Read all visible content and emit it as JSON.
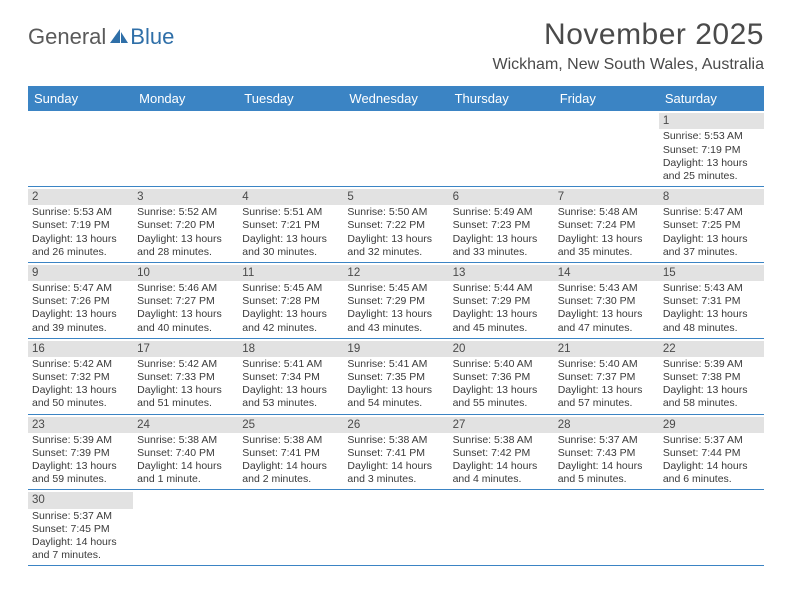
{
  "brand": {
    "part1": "General",
    "part2": "Blue"
  },
  "title": "November 2025",
  "location": "Wickham, New South Wales, Australia",
  "colors": {
    "header_bg": "#3b84c4",
    "header_text": "#ffffff",
    "band_bg": "#e2e2e2",
    "rule": "#3b84c4",
    "text": "#3a3a3a",
    "title_text": "#4a4a4a"
  },
  "day_names": [
    "Sunday",
    "Monday",
    "Tuesday",
    "Wednesday",
    "Thursday",
    "Friday",
    "Saturday"
  ],
  "weeks": [
    [
      {
        "n": "",
        "sr": "",
        "ss": "",
        "dl": ""
      },
      {
        "n": "",
        "sr": "",
        "ss": "",
        "dl": ""
      },
      {
        "n": "",
        "sr": "",
        "ss": "",
        "dl": ""
      },
      {
        "n": "",
        "sr": "",
        "ss": "",
        "dl": ""
      },
      {
        "n": "",
        "sr": "",
        "ss": "",
        "dl": ""
      },
      {
        "n": "",
        "sr": "",
        "ss": "",
        "dl": ""
      },
      {
        "n": "1",
        "sr": "Sunrise: 5:53 AM",
        "ss": "Sunset: 7:19 PM",
        "dl": "Daylight: 13 hours and 25 minutes."
      }
    ],
    [
      {
        "n": "2",
        "sr": "Sunrise: 5:53 AM",
        "ss": "Sunset: 7:19 PM",
        "dl": "Daylight: 13 hours and 26 minutes."
      },
      {
        "n": "3",
        "sr": "Sunrise: 5:52 AM",
        "ss": "Sunset: 7:20 PM",
        "dl": "Daylight: 13 hours and 28 minutes."
      },
      {
        "n": "4",
        "sr": "Sunrise: 5:51 AM",
        "ss": "Sunset: 7:21 PM",
        "dl": "Daylight: 13 hours and 30 minutes."
      },
      {
        "n": "5",
        "sr": "Sunrise: 5:50 AM",
        "ss": "Sunset: 7:22 PM",
        "dl": "Daylight: 13 hours and 32 minutes."
      },
      {
        "n": "6",
        "sr": "Sunrise: 5:49 AM",
        "ss": "Sunset: 7:23 PM",
        "dl": "Daylight: 13 hours and 33 minutes."
      },
      {
        "n": "7",
        "sr": "Sunrise: 5:48 AM",
        "ss": "Sunset: 7:24 PM",
        "dl": "Daylight: 13 hours and 35 minutes."
      },
      {
        "n": "8",
        "sr": "Sunrise: 5:47 AM",
        "ss": "Sunset: 7:25 PM",
        "dl": "Daylight: 13 hours and 37 minutes."
      }
    ],
    [
      {
        "n": "9",
        "sr": "Sunrise: 5:47 AM",
        "ss": "Sunset: 7:26 PM",
        "dl": "Daylight: 13 hours and 39 minutes."
      },
      {
        "n": "10",
        "sr": "Sunrise: 5:46 AM",
        "ss": "Sunset: 7:27 PM",
        "dl": "Daylight: 13 hours and 40 minutes."
      },
      {
        "n": "11",
        "sr": "Sunrise: 5:45 AM",
        "ss": "Sunset: 7:28 PM",
        "dl": "Daylight: 13 hours and 42 minutes."
      },
      {
        "n": "12",
        "sr": "Sunrise: 5:45 AM",
        "ss": "Sunset: 7:29 PM",
        "dl": "Daylight: 13 hours and 43 minutes."
      },
      {
        "n": "13",
        "sr": "Sunrise: 5:44 AM",
        "ss": "Sunset: 7:29 PM",
        "dl": "Daylight: 13 hours and 45 minutes."
      },
      {
        "n": "14",
        "sr": "Sunrise: 5:43 AM",
        "ss": "Sunset: 7:30 PM",
        "dl": "Daylight: 13 hours and 47 minutes."
      },
      {
        "n": "15",
        "sr": "Sunrise: 5:43 AM",
        "ss": "Sunset: 7:31 PM",
        "dl": "Daylight: 13 hours and 48 minutes."
      }
    ],
    [
      {
        "n": "16",
        "sr": "Sunrise: 5:42 AM",
        "ss": "Sunset: 7:32 PM",
        "dl": "Daylight: 13 hours and 50 minutes."
      },
      {
        "n": "17",
        "sr": "Sunrise: 5:42 AM",
        "ss": "Sunset: 7:33 PM",
        "dl": "Daylight: 13 hours and 51 minutes."
      },
      {
        "n": "18",
        "sr": "Sunrise: 5:41 AM",
        "ss": "Sunset: 7:34 PM",
        "dl": "Daylight: 13 hours and 53 minutes."
      },
      {
        "n": "19",
        "sr": "Sunrise: 5:41 AM",
        "ss": "Sunset: 7:35 PM",
        "dl": "Daylight: 13 hours and 54 minutes."
      },
      {
        "n": "20",
        "sr": "Sunrise: 5:40 AM",
        "ss": "Sunset: 7:36 PM",
        "dl": "Daylight: 13 hours and 55 minutes."
      },
      {
        "n": "21",
        "sr": "Sunrise: 5:40 AM",
        "ss": "Sunset: 7:37 PM",
        "dl": "Daylight: 13 hours and 57 minutes."
      },
      {
        "n": "22",
        "sr": "Sunrise: 5:39 AM",
        "ss": "Sunset: 7:38 PM",
        "dl": "Daylight: 13 hours and 58 minutes."
      }
    ],
    [
      {
        "n": "23",
        "sr": "Sunrise: 5:39 AM",
        "ss": "Sunset: 7:39 PM",
        "dl": "Daylight: 13 hours and 59 minutes."
      },
      {
        "n": "24",
        "sr": "Sunrise: 5:38 AM",
        "ss": "Sunset: 7:40 PM",
        "dl": "Daylight: 14 hours and 1 minute."
      },
      {
        "n": "25",
        "sr": "Sunrise: 5:38 AM",
        "ss": "Sunset: 7:41 PM",
        "dl": "Daylight: 14 hours and 2 minutes."
      },
      {
        "n": "26",
        "sr": "Sunrise: 5:38 AM",
        "ss": "Sunset: 7:41 PM",
        "dl": "Daylight: 14 hours and 3 minutes."
      },
      {
        "n": "27",
        "sr": "Sunrise: 5:38 AM",
        "ss": "Sunset: 7:42 PM",
        "dl": "Daylight: 14 hours and 4 minutes."
      },
      {
        "n": "28",
        "sr": "Sunrise: 5:37 AM",
        "ss": "Sunset: 7:43 PM",
        "dl": "Daylight: 14 hours and 5 minutes."
      },
      {
        "n": "29",
        "sr": "Sunrise: 5:37 AM",
        "ss": "Sunset: 7:44 PM",
        "dl": "Daylight: 14 hours and 6 minutes."
      }
    ],
    [
      {
        "n": "30",
        "sr": "Sunrise: 5:37 AM",
        "ss": "Sunset: 7:45 PM",
        "dl": "Daylight: 14 hours and 7 minutes."
      },
      {
        "n": "",
        "sr": "",
        "ss": "",
        "dl": ""
      },
      {
        "n": "",
        "sr": "",
        "ss": "",
        "dl": ""
      },
      {
        "n": "",
        "sr": "",
        "ss": "",
        "dl": ""
      },
      {
        "n": "",
        "sr": "",
        "ss": "",
        "dl": ""
      },
      {
        "n": "",
        "sr": "",
        "ss": "",
        "dl": ""
      },
      {
        "n": "",
        "sr": "",
        "ss": "",
        "dl": ""
      }
    ]
  ]
}
